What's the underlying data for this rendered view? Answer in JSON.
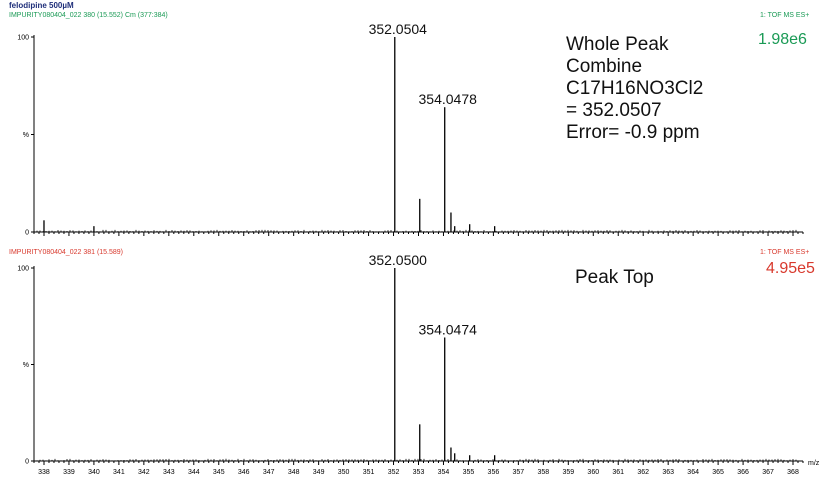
{
  "sample_title": "felodipine 500µM",
  "spectra": [
    {
      "subtitle": "IMPURITY080404_022 380 (15.552) Cm (377:384)",
      "mode": "1: TOF MS ES+",
      "intensity": "1.98e6",
      "annotation_lines": [
        "Whole Peak",
        "Combine",
        "C17H16NO3Cl2",
        "= 352.0507",
        "Error= -0.9 ppm"
      ],
      "y_ticks": [
        "100",
        "%",
        "0"
      ]
    },
    {
      "subtitle": "IMPURITY080404_022 381 (15.589)",
      "mode": "1: TOF MS ES+",
      "intensity": "4.95e5",
      "annotation_lines": [
        "Peak Top"
      ],
      "y_ticks": [
        "100",
        "%",
        "0"
      ]
    }
  ],
  "x_axis_label": "m/z",
  "colors": {
    "green": "#1a9a55",
    "red": "#d8392d",
    "title_blue": "#1f2f7a"
  },
  "chart_data": [
    {
      "type": "bar",
      "title": "felodipine 500µM",
      "xlabel": "m/z",
      "ylabel": "%",
      "xlim": [
        337.6,
        368.4
      ],
      "ylim": [
        0,
        100
      ],
      "x_ticks": [
        338,
        339,
        340,
        341,
        342,
        343,
        344,
        345,
        346,
        347,
        348,
        349,
        350,
        351,
        352,
        353,
        354,
        355,
        356,
        357,
        358,
        359,
        360,
        361,
        362,
        363,
        364,
        365,
        366,
        367,
        368
      ],
      "peaks": [
        {
          "mz": 338.0,
          "intensity": 6
        },
        {
          "mz": 340.0,
          "intensity": 3
        },
        {
          "mz": 352.05,
          "intensity": 100,
          "label": "352.0504"
        },
        {
          "mz": 353.05,
          "intensity": 17
        },
        {
          "mz": 354.05,
          "intensity": 64,
          "label": "354.0478"
        },
        {
          "mz": 354.3,
          "intensity": 10
        },
        {
          "mz": 354.45,
          "intensity": 3
        },
        {
          "mz": 355.05,
          "intensity": 4
        },
        {
          "mz": 356.05,
          "intensity": 3
        }
      ]
    },
    {
      "type": "bar",
      "title": "",
      "xlabel": "m/z",
      "ylabel": "%",
      "xlim": [
        337.6,
        368.4
      ],
      "ylim": [
        0,
        100
      ],
      "x_ticks": [
        338,
        339,
        340,
        341,
        342,
        343,
        344,
        345,
        346,
        347,
        348,
        349,
        350,
        351,
        352,
        353,
        354,
        355,
        356,
        357,
        358,
        359,
        360,
        361,
        362,
        363,
        364,
        365,
        366,
        367,
        368
      ],
      "peaks": [
        {
          "mz": 352.05,
          "intensity": 100,
          "label": "352.0500"
        },
        {
          "mz": 353.05,
          "intensity": 19
        },
        {
          "mz": 354.05,
          "intensity": 64,
          "label": "354.0474"
        },
        {
          "mz": 354.3,
          "intensity": 7
        },
        {
          "mz": 354.45,
          "intensity": 4
        },
        {
          "mz": 355.05,
          "intensity": 3
        },
        {
          "mz": 356.05,
          "intensity": 3
        }
      ]
    }
  ]
}
